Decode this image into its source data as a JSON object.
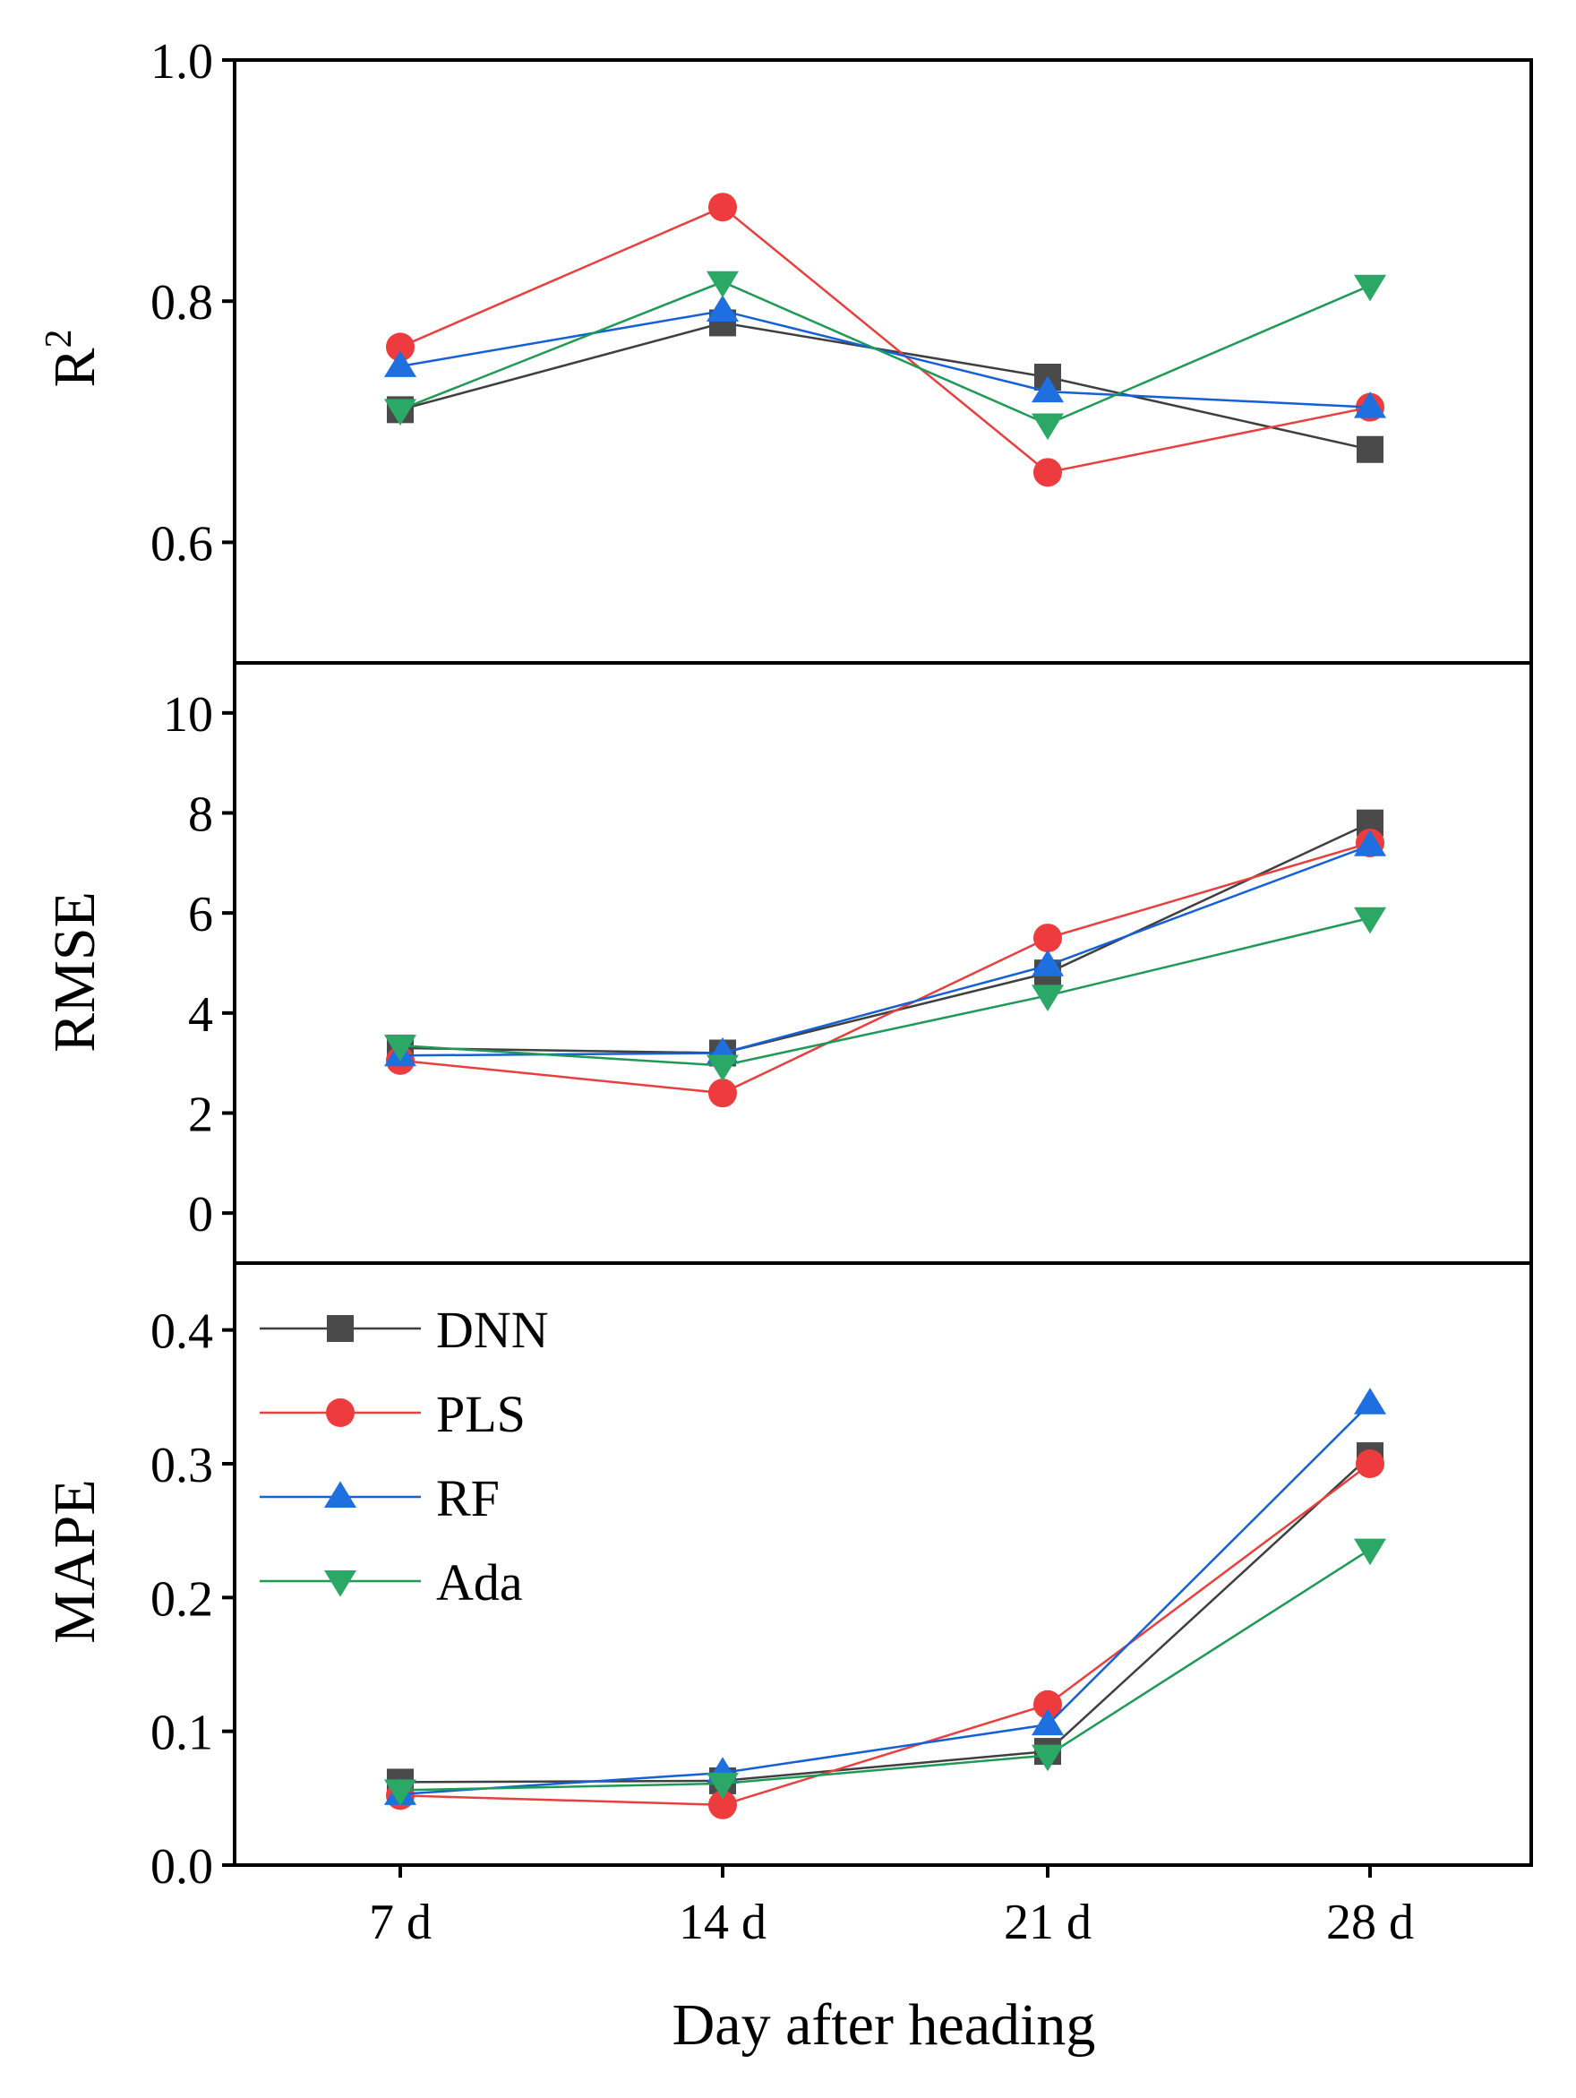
{
  "chart_data": [
    {
      "type": "line",
      "panel": "top",
      "ylabel": "R",
      "ylabel_sup": "2",
      "ylim": [
        0.5,
        1.0
      ],
      "yticks": [
        0.6,
        0.8,
        1.0
      ],
      "ytick_labels": [
        "0.6",
        "0.8",
        "1.0"
      ],
      "categories": [
        "7 d",
        "14 d",
        "21 d",
        "28 d"
      ],
      "series": [
        {
          "name": "DNN",
          "values": [
            0.71,
            0.782,
            0.737,
            0.677
          ]
        },
        {
          "name": "PLS",
          "values": [
            0.762,
            0.878,
            0.658,
            0.712
          ]
        },
        {
          "name": "RF",
          "values": [
            0.746,
            0.792,
            0.725,
            0.712
          ]
        },
        {
          "name": "Ada",
          "values": [
            0.71,
            0.816,
            0.698,
            0.813
          ]
        }
      ]
    },
    {
      "type": "line",
      "panel": "middle",
      "ylabel": "RMSE",
      "ylim": [
        -1,
        11
      ],
      "yticks": [
        0,
        2,
        4,
        6,
        8,
        10
      ],
      "ytick_labels": [
        "0",
        "2",
        "4",
        "6",
        "8",
        "10"
      ],
      "categories": [
        "7 d",
        "14 d",
        "21 d",
        "28 d"
      ],
      "series": [
        {
          "name": "DNN",
          "values": [
            3.3,
            3.2,
            4.8,
            7.8
          ]
        },
        {
          "name": "PLS",
          "values": [
            3.05,
            2.4,
            5.5,
            7.4
          ]
        },
        {
          "name": "RF",
          "values": [
            3.15,
            3.2,
            4.95,
            7.35
          ]
        },
        {
          "name": "Ada",
          "values": [
            3.35,
            2.95,
            4.35,
            5.9
          ]
        }
      ]
    },
    {
      "type": "line",
      "panel": "bottom",
      "ylabel": "MAPE",
      "ylim": [
        0.0,
        0.45
      ],
      "yticks": [
        0.0,
        0.1,
        0.2,
        0.3,
        0.4
      ],
      "ytick_labels": [
        "0.0",
        "0.1",
        "0.2",
        "0.3",
        "0.4"
      ],
      "categories": [
        "7 d",
        "14 d",
        "21 d",
        "28 d"
      ],
      "xlabel": "Day after heading",
      "legend_position": "top-left",
      "series": [
        {
          "name": "DNN",
          "values": [
            0.062,
            0.063,
            0.085,
            0.306
          ]
        },
        {
          "name": "PLS",
          "values": [
            0.052,
            0.045,
            0.12,
            0.3
          ]
        },
        {
          "name": "RF",
          "values": [
            0.053,
            0.069,
            0.105,
            0.345
          ]
        },
        {
          "name": "Ada",
          "values": [
            0.056,
            0.061,
            0.082,
            0.236
          ]
        }
      ]
    }
  ],
  "legend": {
    "items": [
      {
        "name": "DNN",
        "marker": "square"
      },
      {
        "name": "PLS",
        "marker": "circle"
      },
      {
        "name": "RF",
        "marker": "triangle-up"
      },
      {
        "name": "Ada",
        "marker": "triangle-down"
      }
    ]
  },
  "series_style": {
    "DNN": {
      "line_color": "#3f3f3f",
      "marker_color": "#4a4a4a",
      "marker": "square"
    },
    "PLS": {
      "line_color": "#e8403f",
      "marker_color": "#ee3b3e",
      "marker": "circle"
    },
    "RF": {
      "line_color": "#1560d6",
      "marker_color": "#1e6fe0",
      "marker": "triangle-up"
    },
    "Ada": {
      "line_color": "#1f9a56",
      "marker_color": "#2ca866",
      "marker": "triangle-down"
    }
  }
}
